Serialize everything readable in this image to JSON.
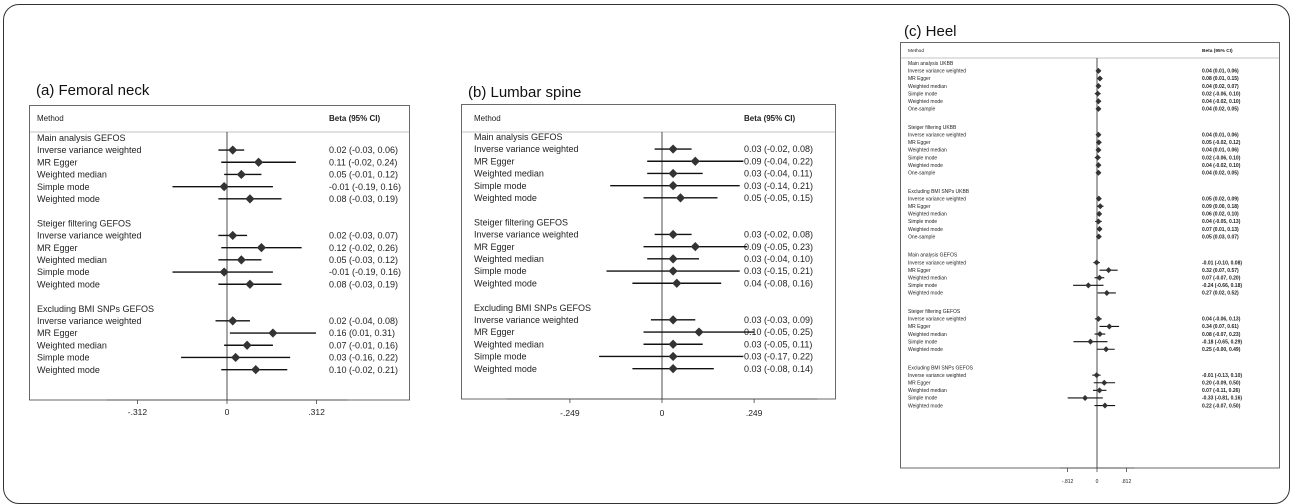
{
  "chart_data": [
    {
      "type": "forest",
      "title": "(a) Femoral neck",
      "col_method": "Method",
      "col_beta": "Beta (95% CI)",
      "x_ticks": [
        -0.312,
        0,
        0.312
      ],
      "x_tick_labels": [
        "-.312",
        "0",
        ".312"
      ],
      "xlim": [
        -0.42,
        0.42
      ],
      "groups": [
        {
          "name": "Main analysis GEFOS",
          "rows": [
            {
              "label": "Inverse variance weighted",
              "beta": 0.02,
              "lo": -0.03,
              "hi": 0.06,
              "text": "0.02 (-0.03, 0.06)"
            },
            {
              "label": "MR Egger",
              "beta": 0.11,
              "lo": -0.02,
              "hi": 0.24,
              "text": "0.11 (-0.02, 0.24)"
            },
            {
              "label": "Weighted median",
              "beta": 0.05,
              "lo": -0.01,
              "hi": 0.12,
              "text": "0.05 (-0.01, 0.12)"
            },
            {
              "label": "Simple mode",
              "beta": -0.01,
              "lo": -0.19,
              "hi": 0.16,
              "text": "-0.01 (-0.19, 0.16)"
            },
            {
              "label": "Weighted mode",
              "beta": 0.08,
              "lo": -0.03,
              "hi": 0.19,
              "text": "0.08 (-0.03, 0.19)"
            }
          ]
        },
        {
          "name": "Steiger filtering GEFOS",
          "rows": [
            {
              "label": "Inverse variance weighted",
              "beta": 0.02,
              "lo": -0.03,
              "hi": 0.07,
              "text": "0.02 (-0.03, 0.07)"
            },
            {
              "label": "MR Egger",
              "beta": 0.12,
              "lo": -0.02,
              "hi": 0.26,
              "text": "0.12 (-0.02, 0.26)"
            },
            {
              "label": "Weighted median",
              "beta": 0.05,
              "lo": -0.03,
              "hi": 0.12,
              "text": "0.05 (-0.03, 0.12)"
            },
            {
              "label": "Simple mode",
              "beta": -0.01,
              "lo": -0.19,
              "hi": 0.16,
              "text": "-0.01 (-0.19, 0.16)"
            },
            {
              "label": "Weighted mode",
              "beta": 0.08,
              "lo": -0.03,
              "hi": 0.19,
              "text": "0.08 (-0.03, 0.19)"
            }
          ]
        },
        {
          "name": "Excluding BMI SNPs GEFOS",
          "rows": [
            {
              "label": "Inverse variance weighted",
              "beta": 0.02,
              "lo": -0.04,
              "hi": 0.08,
              "text": "0.02 (-0.04, 0.08)"
            },
            {
              "label": "MR Egger",
              "beta": 0.16,
              "lo": 0.01,
              "hi": 0.31,
              "text": "0.16 (0.01, 0.31)"
            },
            {
              "label": "Weighted median",
              "beta": 0.07,
              "lo": -0.01,
              "hi": 0.16,
              "text": "0.07 (-0.01, 0.16)"
            },
            {
              "label": "Simple mode",
              "beta": 0.03,
              "lo": -0.16,
              "hi": 0.22,
              "text": "0.03 (-0.16, 0.22)"
            },
            {
              "label": "Weighted mode",
              "beta": 0.1,
              "lo": -0.02,
              "hi": 0.21,
              "text": "0.10 (-0.02, 0.21)"
            }
          ]
        }
      ]
    },
    {
      "type": "forest",
      "title": "(b) Lumbar spine",
      "col_method": "Method",
      "col_beta": "Beta (95% CI)",
      "x_ticks": [
        -0.249,
        0,
        0.249
      ],
      "x_tick_labels": [
        "-.249",
        "0",
        ".249"
      ],
      "xlim": [
        -0.42,
        0.42
      ],
      "groups": [
        {
          "name": "Main analysis GEFOS",
          "rows": [
            {
              "label": "Inverse variance weighted",
              "beta": 0.03,
              "lo": -0.02,
              "hi": 0.08,
              "text": "0.03 (-0.02, 0.08)"
            },
            {
              "label": "MR Egger",
              "beta": 0.09,
              "lo": -0.04,
              "hi": 0.22,
              "text": "0.09 (-0.04, 0.22)"
            },
            {
              "label": "Weighted median",
              "beta": 0.03,
              "lo": -0.04,
              "hi": 0.11,
              "text": "0.03 (-0.04, 0.11)"
            },
            {
              "label": "Simple mode",
              "beta": 0.03,
              "lo": -0.14,
              "hi": 0.21,
              "text": "0.03 (-0.14, 0.21)"
            },
            {
              "label": "Weighted mode",
              "beta": 0.05,
              "lo": -0.05,
              "hi": 0.15,
              "text": "0.05 (-0.05, 0.15)"
            }
          ]
        },
        {
          "name": "Steiger filtering GEFOS",
          "rows": [
            {
              "label": "Inverse variance weighted",
              "beta": 0.03,
              "lo": -0.02,
              "hi": 0.08,
              "text": "0.03 (-0.02, 0.08)"
            },
            {
              "label": "MR Egger",
              "beta": 0.09,
              "lo": -0.05,
              "hi": 0.23,
              "text": "0.09 (-0.05, 0.23)"
            },
            {
              "label": "Weighted median",
              "beta": 0.03,
              "lo": -0.04,
              "hi": 0.1,
              "text": "0.03 (-0.04, 0.10)"
            },
            {
              "label": "Simple mode",
              "beta": 0.03,
              "lo": -0.15,
              "hi": 0.21,
              "text": "0.03 (-0.15, 0.21)"
            },
            {
              "label": "Weighted mode",
              "beta": 0.04,
              "lo": -0.08,
              "hi": 0.16,
              "text": "0.04 (-0.08, 0.16)"
            }
          ]
        },
        {
          "name": "Excluding BMI SNPs GEFOS",
          "rows": [
            {
              "label": "Inverse variance weighted",
              "beta": 0.03,
              "lo": -0.03,
              "hi": 0.09,
              "text": "0.03 (-0.03, 0.09)"
            },
            {
              "label": "MR Egger",
              "beta": 0.1,
              "lo": -0.05,
              "hi": 0.25,
              "text": "0.10 (-0.05, 0.25)"
            },
            {
              "label": "Weighted median",
              "beta": 0.03,
              "lo": -0.05,
              "hi": 0.11,
              "text": "0.03 (-0.05, 0.11)"
            },
            {
              "label": "Simple mode",
              "beta": 0.03,
              "lo": -0.17,
              "hi": 0.22,
              "text": "0.03 (-0.17, 0.22)"
            },
            {
              "label": "Weighted mode",
              "beta": 0.03,
              "lo": -0.08,
              "hi": 0.14,
              "text": "0.03 (-0.08, 0.14)"
            }
          ]
        }
      ]
    },
    {
      "type": "forest",
      "title": "(c) Heel",
      "col_method": "Method",
      "col_beta": "Beta (95% CI)",
      "x_ticks": [
        -0.812,
        0,
        0.812
      ],
      "x_tick_labels": [
        "-.812",
        "0",
        ".812"
      ],
      "xlim": [
        -1.03,
        1.03
      ],
      "groups": [
        {
          "name": "Main analysis UKBB",
          "rows": [
            {
              "label": "Inverse variance weighted",
              "beta": 0.04,
              "lo": 0.01,
              "hi": 0.06,
              "text": "0.04 (0.01, 0.06)"
            },
            {
              "label": "MR Egger",
              "beta": 0.08,
              "lo": 0.01,
              "hi": 0.15,
              "text": "0.08 (0.01, 0.15)"
            },
            {
              "label": "Weighted median",
              "beta": 0.04,
              "lo": 0.02,
              "hi": 0.07,
              "text": "0.04 (0.02, 0.07)"
            },
            {
              "label": "Simple mode",
              "beta": 0.02,
              "lo": -0.06,
              "hi": 0.1,
              "text": "0.02 (-0.06, 0.10)"
            },
            {
              "label": "Weighted mode",
              "beta": 0.04,
              "lo": -0.02,
              "hi": 0.1,
              "text": "0.04 (-0.02, 0.10)"
            },
            {
              "label": "One-sample",
              "beta": 0.04,
              "lo": 0.02,
              "hi": 0.05,
              "text": "0.04 (0.02, 0.05)"
            }
          ]
        },
        {
          "name": "Steiger filtering UKBB",
          "rows": [
            {
              "label": "Inverse variance weighted",
              "beta": 0.04,
              "lo": 0.01,
              "hi": 0.06,
              "text": "0.04 (0.01, 0.06)"
            },
            {
              "label": "MR Egger",
              "beta": 0.05,
              "lo": -0.02,
              "hi": 0.12,
              "text": "0.05 (-0.02, 0.12)"
            },
            {
              "label": "Weighted median",
              "beta": 0.04,
              "lo": 0.01,
              "hi": 0.06,
              "text": "0.04 (0.01, 0.06)"
            },
            {
              "label": "Simple mode",
              "beta": 0.02,
              "lo": -0.06,
              "hi": 0.1,
              "text": "0.02 (-0.06, 0.10)"
            },
            {
              "label": "Weighted mode",
              "beta": 0.04,
              "lo": -0.02,
              "hi": 0.1,
              "text": "0.04 (-0.02, 0.10)"
            },
            {
              "label": "One-sample",
              "beta": 0.04,
              "lo": 0.02,
              "hi": 0.05,
              "text": "0.04 (0.02, 0.05)"
            }
          ]
        },
        {
          "name": "Excluding BMI SNPs UKBB",
          "rows": [
            {
              "label": "Inverse variance weighted",
              "beta": 0.05,
              "lo": 0.02,
              "hi": 0.09,
              "text": "0.05 (0.02, 0.09)"
            },
            {
              "label": "MR Egger",
              "beta": 0.09,
              "lo": 0.0,
              "hi": 0.18,
              "text": "0.09 (0.00, 0.18)"
            },
            {
              "label": "Weighted median",
              "beta": 0.06,
              "lo": 0.02,
              "hi": 0.1,
              "text": "0.06 (0.02, 0.10)"
            },
            {
              "label": "Simple mode",
              "beta": 0.04,
              "lo": -0.05,
              "hi": 0.13,
              "text": "0.04 (-0.05, 0.13)"
            },
            {
              "label": "Weighted mode",
              "beta": 0.07,
              "lo": 0.01,
              "hi": 0.13,
              "text": "0.07 (0.01, 0.13)"
            },
            {
              "label": "One-sample",
              "beta": 0.05,
              "lo": 0.03,
              "hi": 0.07,
              "text": "0.05 (0.03, 0.07)"
            }
          ]
        },
        {
          "name": "Main analysis GEFOS",
          "rows": [
            {
              "label": "Inverse variance weighted",
              "beta": -0.01,
              "lo": -0.1,
              "hi": 0.08,
              "text": "-0.01 (-0.10, 0.08)"
            },
            {
              "label": "MR Egger",
              "beta": 0.32,
              "lo": 0.07,
              "hi": 0.57,
              "text": "0.32 (0.07, 0.57)"
            },
            {
              "label": "Weighted median",
              "beta": 0.07,
              "lo": -0.07,
              "hi": 0.2,
              "text": "0.07 (-0.07, 0.20)"
            },
            {
              "label": "Simple mode",
              "beta": -0.24,
              "lo": -0.66,
              "hi": 0.18,
              "text": "-0.24 (-0.66, 0.18)"
            },
            {
              "label": "Weighted mode",
              "beta": 0.27,
              "lo": 0.02,
              "hi": 0.52,
              "text": "0.27 (0.02, 0.52)"
            }
          ]
        },
        {
          "name": "Steiger filtering GEFOS",
          "rows": [
            {
              "label": "Inverse variance weighted",
              "beta": 0.04,
              "lo": -0.06,
              "hi": 0.13,
              "text": "0.04 (-0.06, 0.13)"
            },
            {
              "label": "MR Egger",
              "beta": 0.34,
              "lo": 0.07,
              "hi": 0.61,
              "text": "0.34 (0.07, 0.61)"
            },
            {
              "label": "Weighted median",
              "beta": 0.08,
              "lo": -0.07,
              "hi": 0.23,
              "text": "0.08 (-0.07, 0.23)"
            },
            {
              "label": "Simple mode",
              "beta": -0.18,
              "lo": -0.65,
              "hi": 0.29,
              "text": "-0.18 (-0.65, 0.29)"
            },
            {
              "label": "Weighted mode",
              "beta": 0.25,
              "lo": 0.0,
              "hi": 0.49,
              "text": "0.25 (-0.00, 0.49)"
            }
          ]
        },
        {
          "name": "Excluding BMI SNPs GEFOS",
          "rows": [
            {
              "label": "Inverse variance weighted",
              "beta": -0.01,
              "lo": -0.13,
              "hi": 0.1,
              "text": "-0.01 (-0.13, 0.10)"
            },
            {
              "label": "MR Egger",
              "beta": 0.2,
              "lo": -0.09,
              "hi": 0.5,
              "text": "0.20 (-0.09, 0.50)"
            },
            {
              "label": "Weighted median",
              "beta": 0.07,
              "lo": -0.11,
              "hi": 0.26,
              "text": "0.07 (-0.11, 0.26)"
            },
            {
              "label": "Simple mode",
              "beta": -0.33,
              "lo": -0.81,
              "hi": 0.16,
              "text": "-0.33 (-0.81, 0.16)"
            },
            {
              "label": "Weighted mode",
              "beta": 0.22,
              "lo": -0.07,
              "hi": 0.5,
              "text": "0.22 (-0.07, 0.50)"
            }
          ]
        }
      ]
    }
  ]
}
